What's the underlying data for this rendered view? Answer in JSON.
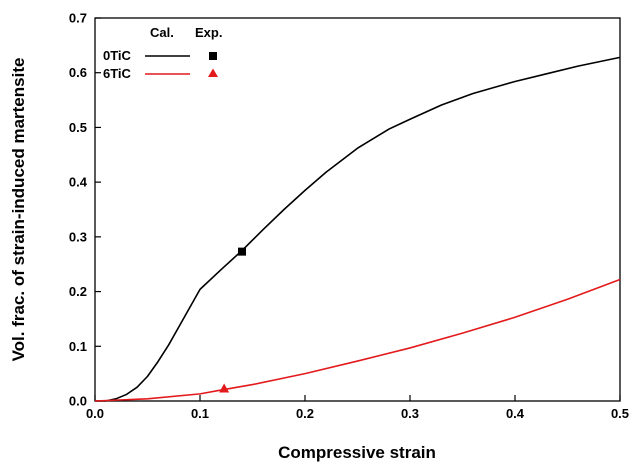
{
  "chart_data": {
    "type": "line",
    "xlabel": "Compressive strain",
    "ylabel": "Vol. frac. of strain-induced martensite",
    "xlim": [
      0.0,
      0.5
    ],
    "ylim": [
      0.0,
      0.7
    ],
    "xticks": [
      "0.0",
      "0.1",
      "0.2",
      "0.3",
      "0.4",
      "0.5"
    ],
    "yticks": [
      "0.0",
      "0.1",
      "0.2",
      "0.3",
      "0.4",
      "0.5",
      "0.6",
      "0.7"
    ],
    "grid": false,
    "legend": {
      "placement": "top-left",
      "header_calc": "Cal.",
      "header_exp": "Exp."
    },
    "series": [
      {
        "name": "0TiC",
        "color": "#000000",
        "marker": "square",
        "calculated": {
          "x": [
            0.0,
            0.01,
            0.02,
            0.03,
            0.04,
            0.05,
            0.06,
            0.07,
            0.08,
            0.09,
            0.1,
            0.12,
            0.14,
            0.16,
            0.18,
            0.2,
            0.22,
            0.25,
            0.28,
            0.3,
            0.33,
            0.36,
            0.4,
            0.43,
            0.46,
            0.5
          ],
          "y": [
            0.0,
            0.0,
            0.004,
            0.012,
            0.025,
            0.045,
            0.072,
            0.102,
            0.136,
            0.17,
            0.204,
            0.24,
            0.275,
            0.313,
            0.35,
            0.385,
            0.418,
            0.462,
            0.497,
            0.515,
            0.541,
            0.562,
            0.584,
            0.598,
            0.612,
            0.628
          ]
        },
        "experimental": {
          "x": [
            0.14
          ],
          "y": [
            0.273
          ]
        }
      },
      {
        "name": "6TiC",
        "color": "#e31a1c",
        "marker": "triangle",
        "calculated": {
          "x": [
            0.0,
            0.05,
            0.1,
            0.12,
            0.15,
            0.2,
            0.25,
            0.3,
            0.35,
            0.4,
            0.45,
            0.5
          ],
          "y": [
            0.0,
            0.004,
            0.013,
            0.02,
            0.03,
            0.05,
            0.073,
            0.097,
            0.124,
            0.153,
            0.186,
            0.222
          ]
        },
        "experimental": {
          "x": [
            0.123
          ],
          "y": [
            0.022
          ]
        }
      }
    ]
  }
}
